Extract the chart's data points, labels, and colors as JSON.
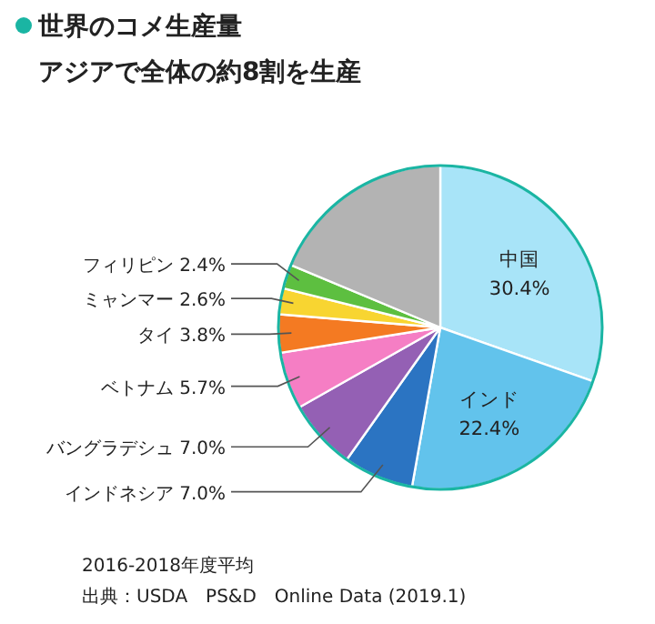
{
  "chart_data": {
    "type": "pie",
    "title": "世界のコメ生産量",
    "subtitle": "アジアで全体の約8割を生産",
    "categories": [
      "中国",
      "インド",
      "インドネシア",
      "バングラデシュ",
      "ベトナム",
      "タイ",
      "ミャンマー",
      "フィリピン",
      null
    ],
    "values": [
      30.4,
      22.4,
      7.0,
      7.0,
      5.7,
      3.8,
      2.6,
      2.4,
      18.7
    ],
    "value_labels": [
      "30.4%",
      "22.4%",
      "7.0%",
      "7.0%",
      "5.7%",
      "3.8%",
      "2.6%",
      "2.4%",
      null
    ],
    "colors": [
      "#a8e4f8",
      "#62c3ec",
      "#2b74c2",
      "#9460b4",
      "#f57ec4",
      "#f47a22",
      "#f8d531",
      "#5dbf40",
      "#b3b3b3"
    ],
    "annotations": [
      "2016-2018年度平均",
      "出典：USDA　PS&D　Online Data (2019.1)"
    ]
  }
}
